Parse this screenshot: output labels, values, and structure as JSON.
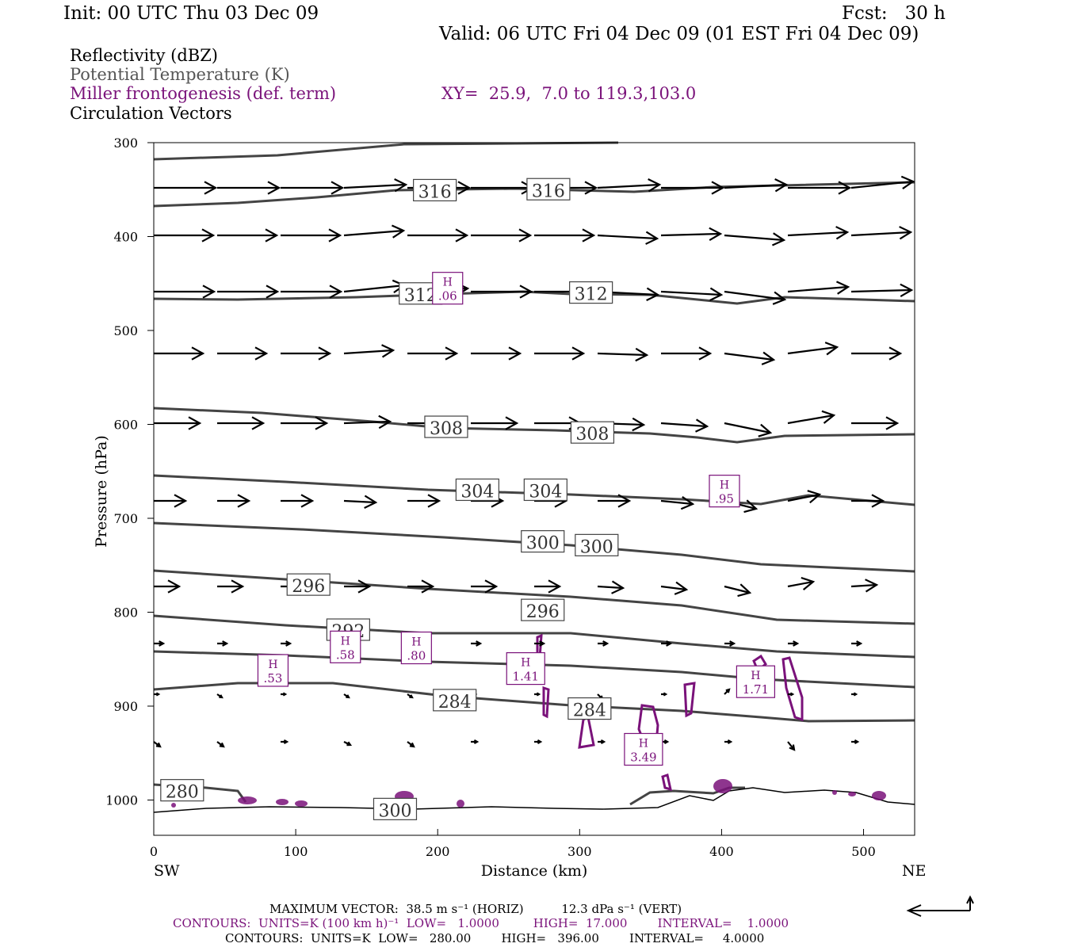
{
  "header": {
    "init": "Init: 00 UTC Thu 03 Dec 09",
    "fcst": "Fcst:   30 h",
    "valid": "Valid: 06 UTC Fri 04 Dec 09 (01 EST Fri 04 Dec 09)"
  },
  "legend": {
    "reflectivity": "Reflectivity (dBZ)",
    "theta": "Potential Temperature (K)",
    "frontogenesis": "Miller frontogenesis (def. term)",
    "xy": "XY=  25.9,  7.0 to 119.3,103.0",
    "circulation": "Circulation Vectors"
  },
  "axes": {
    "ylabel": "Pressure (hPa)",
    "xlabel": "Distance (km)",
    "left_end": "SW",
    "right_end": "NE"
  },
  "footer": {
    "max_vector": "MAXIMUM VECTOR:  38.5 m s⁻¹ (HORIZ)          12.3 dPa s⁻¹ (VERT)",
    "contours_purple": "CONTOURS:  UNITS=K (100 km h)⁻¹  LOW=   1.0000         HIGH=  17.000        INTERVAL=    1.0000",
    "contours_black": "CONTOURS:  UNITS=K  LOW=   280.00        HIGH=   396.00        INTERVAL=     4.0000"
  },
  "colors": {
    "theta": "#444444",
    "frontogenesis": "#7a127a",
    "vectors": "#000000",
    "terrain": "#000000"
  },
  "chart_data": {
    "type": "cross-section",
    "xlim": [
      0,
      536
    ],
    "ylim": [
      1040,
      300
    ],
    "yscale": "pressure",
    "x_ticks": [
      0,
      100,
      200,
      300,
      400,
      500
    ],
    "y_ticks": [
      300,
      400,
      500,
      600,
      700,
      800,
      900,
      1000
    ],
    "theta_labels": [
      {
        "x": 198,
        "p": 351,
        "text": "316"
      },
      {
        "x": 278,
        "p": 350,
        "text": "316"
      },
      {
        "x": 188,
        "p": 461,
        "text": "312"
      },
      {
        "x": 308,
        "p": 460,
        "text": "312"
      },
      {
        "x": 206,
        "p": 603,
        "text": "308"
      },
      {
        "x": 309,
        "p": 609,
        "text": "308"
      },
      {
        "x": 228,
        "p": 670,
        "text": "304"
      },
      {
        "x": 276,
        "p": 670,
        "text": "304"
      },
      {
        "x": 274,
        "p": 725,
        "text": "300"
      },
      {
        "x": 312,
        "p": 729,
        "text": "300"
      },
      {
        "x": 109,
        "p": 771,
        "text": "296"
      },
      {
        "x": 274,
        "p": 798,
        "text": "296"
      },
      {
        "x": 137,
        "p": 819,
        "text": "292"
      },
      {
        "x": 212,
        "p": 894,
        "text": "284"
      },
      {
        "x": 307,
        "p": 903,
        "text": "284"
      },
      {
        "x": 20,
        "p": 990,
        "text": "280"
      },
      {
        "x": 170,
        "p": 1010,
        "text": "300"
      }
    ],
    "highs": [
      {
        "x": 207,
        "p": 455,
        "value": ".06"
      },
      {
        "x": 402,
        "p": 671,
        "value": ".95"
      },
      {
        "x": 135,
        "p": 837,
        "value": ".58"
      },
      {
        "x": 185,
        "p": 838,
        "value": ".80"
      },
      {
        "x": 84,
        "p": 862,
        "value": ".53"
      },
      {
        "x": 262,
        "p": 860,
        "value": "1.41"
      },
      {
        "x": 424,
        "p": 874,
        "value": "1.71"
      },
      {
        "x": 345,
        "p": 946,
        "value": "3.49"
      }
    ]
  }
}
